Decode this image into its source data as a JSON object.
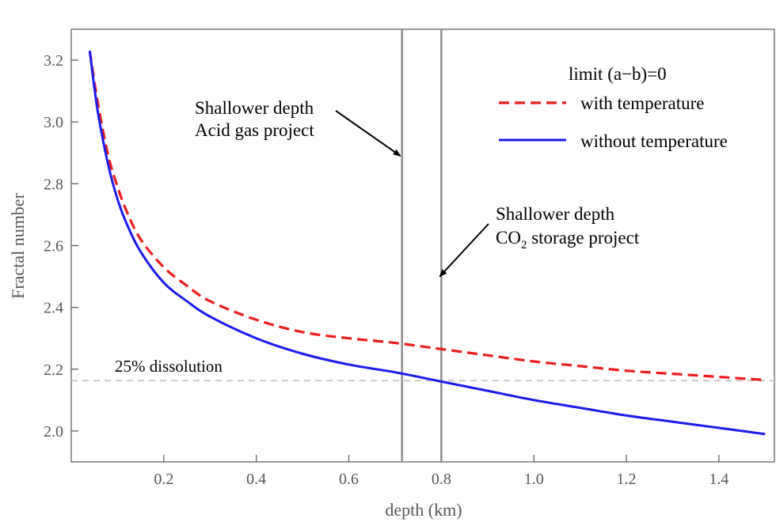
{
  "chart_data": {
    "type": "line",
    "xlabel": "depth (km)",
    "ylabel": "Fractal number",
    "xlim": [
      0.0,
      1.52
    ],
    "ylim": [
      1.9,
      3.3
    ],
    "x_ticks": [
      0.2,
      0.4,
      0.6,
      0.8,
      1.0,
      1.2,
      1.4
    ],
    "x_tick_labels": [
      "0.2",
      "0.4",
      "0.6",
      "0.8",
      "1.0",
      "1.2",
      "1.4"
    ],
    "y_ticks": [
      2.0,
      2.2,
      2.4,
      2.6,
      2.8,
      3.0,
      3.2
    ],
    "y_tick_labels": [
      "2.0",
      "2.2",
      "2.4",
      "2.6",
      "2.8",
      "3.0",
      "3.2"
    ],
    "legend": {
      "title": "limit (a−b)=0",
      "position": "top-right"
    },
    "series": [
      {
        "name": "with temperature",
        "color": "#ee1c1c",
        "style": "dashed",
        "x": [
          0.04,
          0.05,
          0.06,
          0.08,
          0.1,
          0.12,
          0.15,
          0.2,
          0.25,
          0.3,
          0.4,
          0.5,
          0.6,
          0.7,
          0.8,
          0.9,
          1.0,
          1.1,
          1.2,
          1.3,
          1.4,
          1.5
        ],
        "y": [
          3.23,
          3.13,
          3.04,
          2.89,
          2.79,
          2.71,
          2.62,
          2.53,
          2.47,
          2.42,
          2.36,
          2.32,
          2.3,
          2.285,
          2.265,
          2.245,
          2.225,
          2.21,
          2.195,
          2.185,
          2.175,
          2.165
        ]
      },
      {
        "name": "without temperature",
        "color": "#1a1aee",
        "style": "solid",
        "x": [
          0.04,
          0.05,
          0.06,
          0.08,
          0.1,
          0.12,
          0.15,
          0.2,
          0.25,
          0.3,
          0.4,
          0.5,
          0.6,
          0.7,
          0.8,
          0.9,
          1.0,
          1.1,
          1.2,
          1.3,
          1.4,
          1.5
        ],
        "y": [
          3.23,
          3.11,
          3.01,
          2.86,
          2.75,
          2.67,
          2.58,
          2.48,
          2.42,
          2.37,
          2.3,
          2.25,
          2.215,
          2.19,
          2.16,
          2.13,
          2.1,
          2.075,
          2.05,
          2.03,
          2.01,
          1.99
        ]
      }
    ],
    "vertical_lines": [
      {
        "x": 0.715,
        "color": "#888888"
      },
      {
        "x": 0.8,
        "color": "#888888"
      }
    ],
    "reference_line": {
      "y": 2.163,
      "color": "#c8c8c8",
      "style": "dashed",
      "label": "25% dissolution"
    },
    "annotations": [
      {
        "line1": "Shallower depth",
        "line2": "Acid gas project",
        "arrow_to": {
          "x": 0.715,
          "y": 2.89
        }
      },
      {
        "line1": "Shallower depth",
        "line2_prefix": "CO",
        "line2_sub": "2",
        "line2_suffix": " storage project",
        "arrow_to": {
          "x": 0.8,
          "y": 2.5
        }
      }
    ]
  }
}
